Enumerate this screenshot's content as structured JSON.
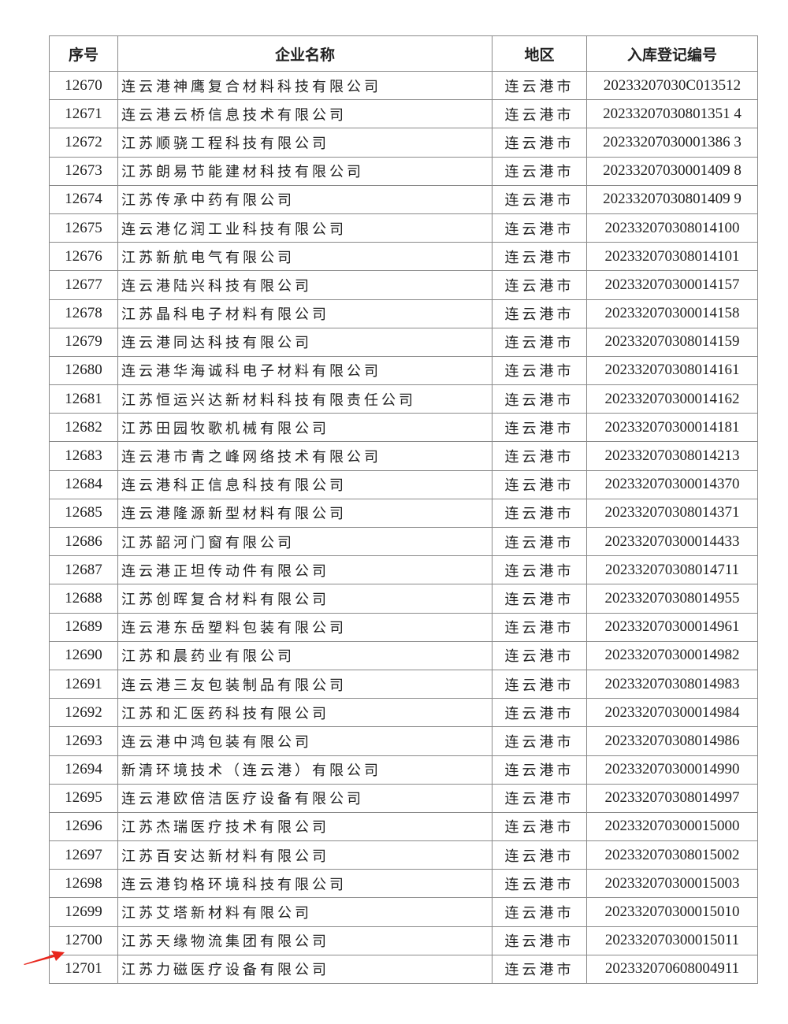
{
  "headers": {
    "no": "序号",
    "name": "企业名称",
    "region": "地区",
    "code": "入库登记编号"
  },
  "highlight_row": "12700",
  "arrow_color": "#e8261c",
  "rows": [
    {
      "no": "12670",
      "name": "连云港神鹰复合材料科技有限公司",
      "region": "连云港市",
      "code": "20233207030C013512"
    },
    {
      "no": "12671",
      "name": "连云港云桥信息技术有限公司",
      "region": "连云港市",
      "code": "20233207030801351 4"
    },
    {
      "no": "12672",
      "name": "江苏顺骁工程科技有限公司",
      "region": "连云港市",
      "code": "20233207030001386 3"
    },
    {
      "no": "12673",
      "name": "江苏朗易节能建材科技有限公司",
      "region": "连云港市",
      "code": "20233207030001409 8"
    },
    {
      "no": "12674",
      "name": "江苏传承中药有限公司",
      "region": "连云港市",
      "code": "20233207030801409 9"
    },
    {
      "no": "12675",
      "name": "连云港亿润工业科技有限公司",
      "region": "连云港市",
      "code": "202332070308014100"
    },
    {
      "no": "12676",
      "name": "江苏新航电气有限公司",
      "region": "连云港市",
      "code": "202332070308014101"
    },
    {
      "no": "12677",
      "name": "连云港陆兴科技有限公司",
      "region": "连云港市",
      "code": "202332070300014157"
    },
    {
      "no": "12678",
      "name": "江苏晶科电子材料有限公司",
      "region": "连云港市",
      "code": "202332070300014158"
    },
    {
      "no": "12679",
      "name": "连云港同达科技有限公司",
      "region": "连云港市",
      "code": "202332070308014159"
    },
    {
      "no": "12680",
      "name": "连云港华海诚科电子材料有限公司",
      "region": "连云港市",
      "code": "202332070308014161"
    },
    {
      "no": "12681",
      "name": "江苏恒运兴达新材料科技有限责任公司",
      "region": "连云港市",
      "code": "202332070300014162"
    },
    {
      "no": "12682",
      "name": "江苏田园牧歌机械有限公司",
      "region": "连云港市",
      "code": "202332070300014181"
    },
    {
      "no": "12683",
      "name": "连云港市青之峰网络技术有限公司",
      "region": "连云港市",
      "code": "202332070308014213"
    },
    {
      "no": "12684",
      "name": "连云港科正信息科技有限公司",
      "region": "连云港市",
      "code": "202332070300014370"
    },
    {
      "no": "12685",
      "name": "连云港隆源新型材料有限公司",
      "region": "连云港市",
      "code": "202332070308014371"
    },
    {
      "no": "12686",
      "name": "江苏韶河门窗有限公司",
      "region": "连云港市",
      "code": "202332070300014433"
    },
    {
      "no": "12687",
      "name": "连云港正坦传动件有限公司",
      "region": "连云港市",
      "code": "202332070308014711"
    },
    {
      "no": "12688",
      "name": "江苏创晖复合材料有限公司",
      "region": "连云港市",
      "code": "202332070308014955"
    },
    {
      "no": "12689",
      "name": "连云港东岳塑料包装有限公司",
      "region": "连云港市",
      "code": "202332070300014961"
    },
    {
      "no": "12690",
      "name": "江苏和晨药业有限公司",
      "region": "连云港市",
      "code": "202332070300014982"
    },
    {
      "no": "12691",
      "name": "连云港三友包装制品有限公司",
      "region": "连云港市",
      "code": "202332070308014983"
    },
    {
      "no": "12692",
      "name": "江苏和汇医药科技有限公司",
      "region": "连云港市",
      "code": "202332070300014984"
    },
    {
      "no": "12693",
      "name": "连云港中鸿包装有限公司",
      "region": "连云港市",
      "code": "202332070308014986"
    },
    {
      "no": "12694",
      "name": "新清环境技术（连云港）有限公司",
      "region": "连云港市",
      "code": "202332070300014990"
    },
    {
      "no": "12695",
      "name": "连云港欧倍洁医疗设备有限公司",
      "region": "连云港市",
      "code": "202332070308014997"
    },
    {
      "no": "12696",
      "name": "江苏杰瑞医疗技术有限公司",
      "region": "连云港市",
      "code": "202332070300015000"
    },
    {
      "no": "12697",
      "name": "江苏百安达新材料有限公司",
      "region": "连云港市",
      "code": "202332070308015002"
    },
    {
      "no": "12698",
      "name": "连云港钧格环境科技有限公司",
      "region": "连云港市",
      "code": "202332070300015003"
    },
    {
      "no": "12699",
      "name": "江苏艾塔新材料有限公司",
      "region": "连云港市",
      "code": "202332070300015010"
    },
    {
      "no": "12700",
      "name": "江苏天缘物流集团有限公司",
      "region": "连云港市",
      "code": "202332070300015011"
    },
    {
      "no": "12701",
      "name": "江苏力磁医疗设备有限公司",
      "region": "连云港市",
      "code": "202332070608004911"
    }
  ]
}
